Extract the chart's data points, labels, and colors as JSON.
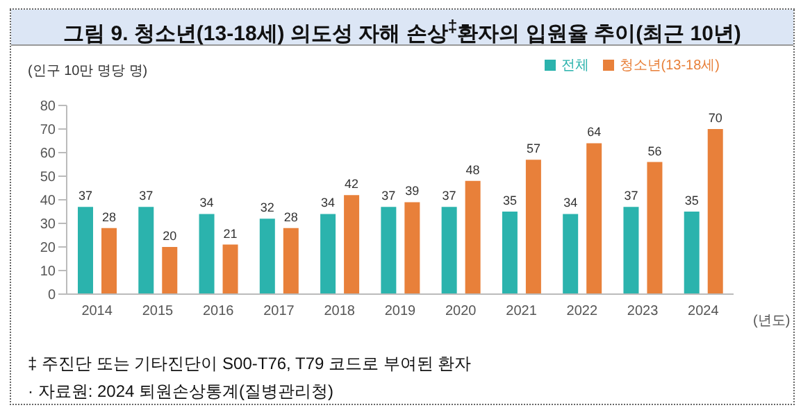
{
  "chart_data": {
    "type": "bar",
    "title": "그림 9. 청소년(13-18세) 의도성 자해 손상$^{‡}$환자의 입원율 추이(최근 10년)",
    "ylabel": "(인구 10만 명당 명)",
    "xlabel": "(년도)",
    "categories": [
      "2014",
      "2015",
      "2016",
      "2017",
      "2018",
      "2019",
      "2020",
      "2021",
      "2022",
      "2023",
      "2024"
    ],
    "series": [
      {
        "name": "전체",
        "color": "#2bb3ad",
        "values": [
          37,
          37,
          34,
          32,
          34,
          37,
          37,
          35,
          34,
          37,
          35
        ]
      },
      {
        "name": "청소년(13-18세)",
        "color": "#e8803a",
        "values": [
          28,
          20,
          21,
          28,
          42,
          39,
          48,
          57,
          64,
          56,
          70
        ]
      }
    ],
    "ylim": [
      0,
      80
    ],
    "yticks": [
      0,
      10,
      20,
      30,
      40,
      50,
      60,
      70,
      80
    ],
    "grid": false,
    "legend": "top right",
    "data_labels": true,
    "annotations": [
      "‡ 주진단 또는 기타진단이 S00-T76, T79 코드로 부여된 환자",
      "· 자료원: 2024 퇴원손상통계(질병관리청)"
    ]
  }
}
